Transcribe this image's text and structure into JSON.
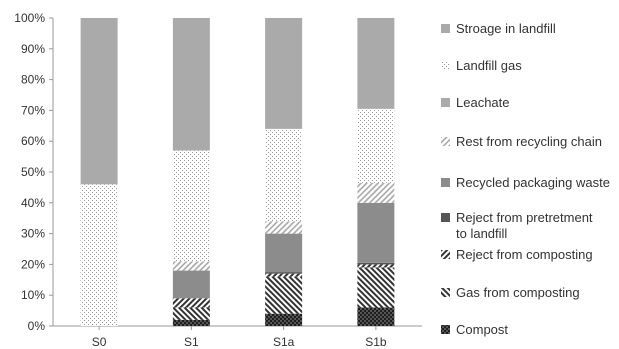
{
  "chart_data": {
    "type": "bar",
    "stacked": true,
    "percent": true,
    "categories": [
      "S0",
      "S1",
      "S1a",
      "S1b"
    ],
    "y_ticks": [
      "0%",
      "10%",
      "20%",
      "30%",
      "40%",
      "50%",
      "60%",
      "70%",
      "80%",
      "90%",
      "100%"
    ],
    "ylim": [
      0,
      100
    ],
    "grid": false,
    "legend_position": "right",
    "series": [
      {
        "name": "Compost",
        "pattern": "checker-dark",
        "values": [
          0,
          2,
          4,
          6
        ]
      },
      {
        "name": "Gas from composting",
        "pattern": "diag-back",
        "values": [
          0,
          4,
          12,
          13
        ]
      },
      {
        "name": "Reject from composting",
        "pattern": "diag-fwd",
        "values": [
          0,
          3,
          1,
          1
        ]
      },
      {
        "name": "Reject from pretretment to landfill",
        "pattern": "solid-dark",
        "values": [
          0,
          0,
          0.5,
          0.5
        ]
      },
      {
        "name": "Recycled packaging waste",
        "pattern": "solid-mid",
        "values": [
          0,
          9,
          12.5,
          19.5
        ]
      },
      {
        "name": "Rest from recycling chain",
        "pattern": "diag-light",
        "values": [
          0,
          3,
          4,
          6.5
        ]
      },
      {
        "name": "Leachate",
        "pattern": "solid-light",
        "values": [
          0,
          0,
          0,
          0
        ]
      },
      {
        "name": "Landfill gas",
        "pattern": "dots",
        "values": [
          46,
          36,
          30,
          24
        ]
      },
      {
        "name": "Stroage in landfill",
        "pattern": "solid-light",
        "values": [
          54,
          43,
          36,
          29.5
        ]
      }
    ],
    "legend_order": [
      "Stroage in landfill",
      "Landfill gas",
      "Leachate",
      "Rest from recycling chain",
      "Recycled packaging waste",
      "Reject from pretretment to landfill",
      "Reject from composting",
      "Gas from composting",
      "Compost"
    ]
  }
}
